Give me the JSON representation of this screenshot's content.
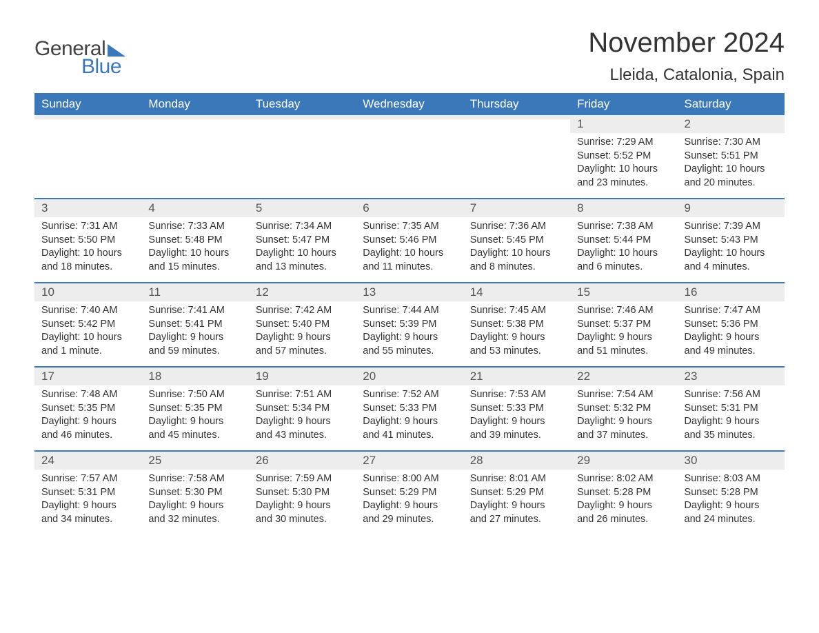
{
  "logo": {
    "word1": "General",
    "word2": "Blue"
  },
  "title": "November 2024",
  "location": "Lleida, Catalonia, Spain",
  "colors": {
    "brand_blue": "#3a78b9",
    "header_text": "#ffffff",
    "daynum_bg": "#ededed",
    "text": "#333333",
    "background": "#ffffff"
  },
  "typography": {
    "title_fontsize": 40,
    "location_fontsize": 24,
    "dayheader_fontsize": 17,
    "daynum_fontsize": 17,
    "body_fontsize": 14.5,
    "logo_fontsize": 30,
    "font_family": "Arial"
  },
  "day_names": [
    "Sunday",
    "Monday",
    "Tuesday",
    "Wednesday",
    "Thursday",
    "Friday",
    "Saturday"
  ],
  "labels": {
    "sunrise": "Sunrise:",
    "sunset": "Sunset:",
    "daylight": "Daylight:"
  },
  "weeks": [
    [
      null,
      null,
      null,
      null,
      null,
      {
        "n": "1",
        "sunrise": "7:29 AM",
        "sunset": "5:52 PM",
        "daylight": "10 hours and 23 minutes."
      },
      {
        "n": "2",
        "sunrise": "7:30 AM",
        "sunset": "5:51 PM",
        "daylight": "10 hours and 20 minutes."
      }
    ],
    [
      {
        "n": "3",
        "sunrise": "7:31 AM",
        "sunset": "5:50 PM",
        "daylight": "10 hours and 18 minutes."
      },
      {
        "n": "4",
        "sunrise": "7:33 AM",
        "sunset": "5:48 PM",
        "daylight": "10 hours and 15 minutes."
      },
      {
        "n": "5",
        "sunrise": "7:34 AM",
        "sunset": "5:47 PM",
        "daylight": "10 hours and 13 minutes."
      },
      {
        "n": "6",
        "sunrise": "7:35 AM",
        "sunset": "5:46 PM",
        "daylight": "10 hours and 11 minutes."
      },
      {
        "n": "7",
        "sunrise": "7:36 AM",
        "sunset": "5:45 PM",
        "daylight": "10 hours and 8 minutes."
      },
      {
        "n": "8",
        "sunrise": "7:38 AM",
        "sunset": "5:44 PM",
        "daylight": "10 hours and 6 minutes."
      },
      {
        "n": "9",
        "sunrise": "7:39 AM",
        "sunset": "5:43 PM",
        "daylight": "10 hours and 4 minutes."
      }
    ],
    [
      {
        "n": "10",
        "sunrise": "7:40 AM",
        "sunset": "5:42 PM",
        "daylight": "10 hours and 1 minute."
      },
      {
        "n": "11",
        "sunrise": "7:41 AM",
        "sunset": "5:41 PM",
        "daylight": "9 hours and 59 minutes."
      },
      {
        "n": "12",
        "sunrise": "7:42 AM",
        "sunset": "5:40 PM",
        "daylight": "9 hours and 57 minutes."
      },
      {
        "n": "13",
        "sunrise": "7:44 AM",
        "sunset": "5:39 PM",
        "daylight": "9 hours and 55 minutes."
      },
      {
        "n": "14",
        "sunrise": "7:45 AM",
        "sunset": "5:38 PM",
        "daylight": "9 hours and 53 minutes."
      },
      {
        "n": "15",
        "sunrise": "7:46 AM",
        "sunset": "5:37 PM",
        "daylight": "9 hours and 51 minutes."
      },
      {
        "n": "16",
        "sunrise": "7:47 AM",
        "sunset": "5:36 PM",
        "daylight": "9 hours and 49 minutes."
      }
    ],
    [
      {
        "n": "17",
        "sunrise": "7:48 AM",
        "sunset": "5:35 PM",
        "daylight": "9 hours and 46 minutes."
      },
      {
        "n": "18",
        "sunrise": "7:50 AM",
        "sunset": "5:35 PM",
        "daylight": "9 hours and 45 minutes."
      },
      {
        "n": "19",
        "sunrise": "7:51 AM",
        "sunset": "5:34 PM",
        "daylight": "9 hours and 43 minutes."
      },
      {
        "n": "20",
        "sunrise": "7:52 AM",
        "sunset": "5:33 PM",
        "daylight": "9 hours and 41 minutes."
      },
      {
        "n": "21",
        "sunrise": "7:53 AM",
        "sunset": "5:33 PM",
        "daylight": "9 hours and 39 minutes."
      },
      {
        "n": "22",
        "sunrise": "7:54 AM",
        "sunset": "5:32 PM",
        "daylight": "9 hours and 37 minutes."
      },
      {
        "n": "23",
        "sunrise": "7:56 AM",
        "sunset": "5:31 PM",
        "daylight": "9 hours and 35 minutes."
      }
    ],
    [
      {
        "n": "24",
        "sunrise": "7:57 AM",
        "sunset": "5:31 PM",
        "daylight": "9 hours and 34 minutes."
      },
      {
        "n": "25",
        "sunrise": "7:58 AM",
        "sunset": "5:30 PM",
        "daylight": "9 hours and 32 minutes."
      },
      {
        "n": "26",
        "sunrise": "7:59 AM",
        "sunset": "5:30 PM",
        "daylight": "9 hours and 30 minutes."
      },
      {
        "n": "27",
        "sunrise": "8:00 AM",
        "sunset": "5:29 PM",
        "daylight": "9 hours and 29 minutes."
      },
      {
        "n": "28",
        "sunrise": "8:01 AM",
        "sunset": "5:29 PM",
        "daylight": "9 hours and 27 minutes."
      },
      {
        "n": "29",
        "sunrise": "8:02 AM",
        "sunset": "5:28 PM",
        "daylight": "9 hours and 26 minutes."
      },
      {
        "n": "30",
        "sunrise": "8:03 AM",
        "sunset": "5:28 PM",
        "daylight": "9 hours and 24 minutes."
      }
    ]
  ]
}
